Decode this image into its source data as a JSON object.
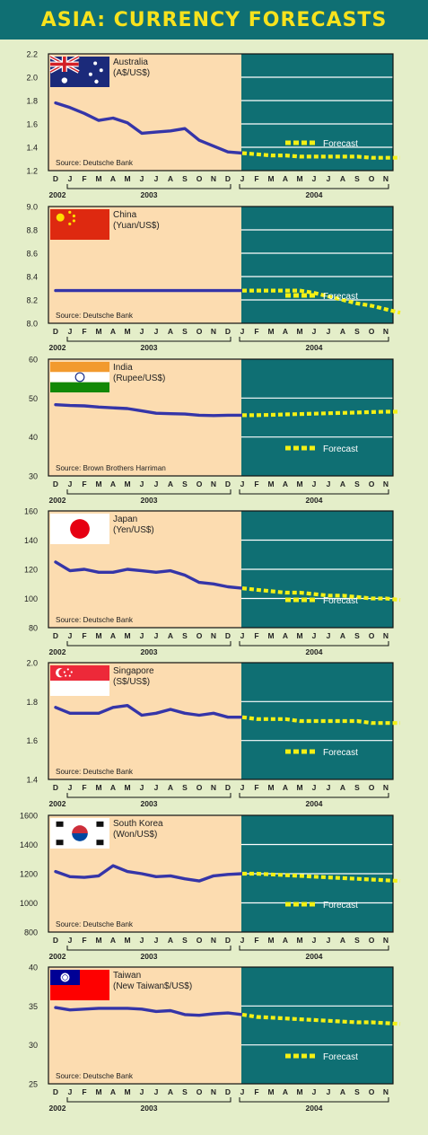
{
  "title": "ASIA: CURRENCY FORECASTS",
  "colors": {
    "header_bg": "#0f6f73",
    "header_text": "#f7e21d",
    "page_bg": "#e4eec9",
    "history_bg": "#fcdcb0",
    "forecast_bg": "#0f6f73",
    "actual_line": "#3535a8",
    "forecast_line": "#f4f014",
    "gridline": "#ffffff"
  },
  "month_letters": [
    "D",
    "J",
    "F",
    "M",
    "A",
    "M",
    "J",
    "J",
    "A",
    "S",
    "O",
    "N",
    "D",
    "J",
    "F",
    "M",
    "A",
    "M",
    "J",
    "J",
    "A",
    "S",
    "O",
    "N"
  ],
  "year_labels": {
    "y2002": "2002",
    "y2003": "2003",
    "y2004": "2004"
  },
  "forecast_label": "Forecast",
  "chart_data": [
    {
      "type": "line",
      "country": "Australia",
      "flag": "australia-flag",
      "unit": "(A$/US$)",
      "source": "Source: Deutsche Bank",
      "y_ticks": [
        "2.2",
        "2.0",
        "1.8",
        "1.6",
        "1.4",
        "1.2"
      ],
      "ylim": [
        1.2,
        2.2
      ],
      "actual": [
        1.78,
        1.74,
        1.69,
        1.63,
        1.65,
        1.61,
        1.52,
        1.53,
        1.54,
        1.56,
        1.46,
        1.41,
        1.36,
        1.35
      ],
      "forecast": [
        1.35,
        1.34,
        1.33,
        1.33,
        1.32,
        1.32,
        1.32,
        1.32,
        1.32,
        1.31,
        1.31,
        1.31
      ]
    },
    {
      "type": "line",
      "country": "China",
      "flag": "china-flag",
      "unit": "(Yuan/US$)",
      "source": "Source: Deutsche Bank",
      "y_ticks": [
        "9.0",
        "8.8",
        "8.6",
        "8.4",
        "8.2",
        "8.0"
      ],
      "ylim": [
        8.0,
        9.0
      ],
      "actual": [
        8.28,
        8.28,
        8.28,
        8.28,
        8.28,
        8.28,
        8.28,
        8.28,
        8.28,
        8.28,
        8.28,
        8.28,
        8.28,
        8.28
      ],
      "forecast": [
        8.28,
        8.28,
        8.28,
        8.28,
        8.28,
        8.26,
        8.23,
        8.2,
        8.17,
        8.15,
        8.12,
        8.09
      ]
    },
    {
      "type": "line",
      "country": "India",
      "flag": "india-flag",
      "unit": "(Rupee/US$)",
      "source": "Source: Brown Brothers Harriman",
      "y_ticks": [
        "60",
        "50",
        "40",
        "30"
      ],
      "ylim": [
        30,
        60
      ],
      "actual": [
        48.3,
        48.1,
        48.0,
        47.7,
        47.5,
        47.3,
        46.7,
        46.1,
        46.0,
        45.9,
        45.6,
        45.5,
        45.6,
        45.6
      ],
      "forecast": [
        45.6,
        45.6,
        45.7,
        45.8,
        45.9,
        46.0,
        46.1,
        46.2,
        46.3,
        46.4,
        46.5,
        46.5
      ]
    },
    {
      "type": "line",
      "country": "Japan",
      "flag": "japan-flag",
      "unit": "(Yen/US$)",
      "source": "Source: Deutsche Bank",
      "y_ticks": [
        "160",
        "140",
        "120",
        "100",
        "80"
      ],
      "ylim": [
        80,
        160
      ],
      "actual": [
        125,
        119,
        120,
        118,
        118,
        120,
        119,
        118,
        119,
        116,
        111,
        110,
        108,
        107
      ],
      "forecast": [
        107,
        106,
        105,
        104,
        104,
        103,
        102,
        102,
        101,
        100,
        100,
        99
      ]
    },
    {
      "type": "line",
      "country": "Singapore",
      "flag": "singapore-flag",
      "unit": "(S$/US$)",
      "source": "Source: Deutsche Bank",
      "y_ticks": [
        "2.0",
        "1.8",
        "1.6",
        "1.4"
      ],
      "ylim": [
        1.4,
        2.0
      ],
      "actual": [
        1.77,
        1.74,
        1.74,
        1.74,
        1.77,
        1.78,
        1.73,
        1.74,
        1.76,
        1.74,
        1.73,
        1.74,
        1.72,
        1.72
      ],
      "forecast": [
        1.72,
        1.71,
        1.71,
        1.71,
        1.7,
        1.7,
        1.7,
        1.7,
        1.7,
        1.69,
        1.69,
        1.69
      ]
    },
    {
      "type": "line",
      "country": "South Korea",
      "flag": "south-korea-flag",
      "unit": "(Won/US$)",
      "source": "Source: Deutsche Bank",
      "y_ticks": [
        "1600",
        "1400",
        "1200",
        "1000",
        "800"
      ],
      "ylim": [
        800,
        1600
      ],
      "actual": [
        1215,
        1180,
        1175,
        1185,
        1255,
        1215,
        1200,
        1180,
        1185,
        1165,
        1150,
        1185,
        1195,
        1200
      ],
      "forecast": [
        1200,
        1200,
        1195,
        1190,
        1185,
        1180,
        1175,
        1170,
        1165,
        1160,
        1155,
        1150
      ]
    },
    {
      "type": "line",
      "country": "Taiwan",
      "flag": "taiwan-flag",
      "unit": "(New Taiwan$/US$)",
      "source": "Source: Deutsche Bank",
      "y_ticks": [
        "40",
        "35",
        "30",
        "25"
      ],
      "ylim": [
        25,
        40
      ],
      "actual": [
        34.8,
        34.5,
        34.6,
        34.7,
        34.7,
        34.7,
        34.6,
        34.3,
        34.4,
        33.9,
        33.8,
        34.0,
        34.1,
        33.9
      ],
      "forecast": [
        33.9,
        33.6,
        33.5,
        33.4,
        33.3,
        33.2,
        33.1,
        33.0,
        32.9,
        32.9,
        32.8,
        32.7
      ]
    }
  ]
}
